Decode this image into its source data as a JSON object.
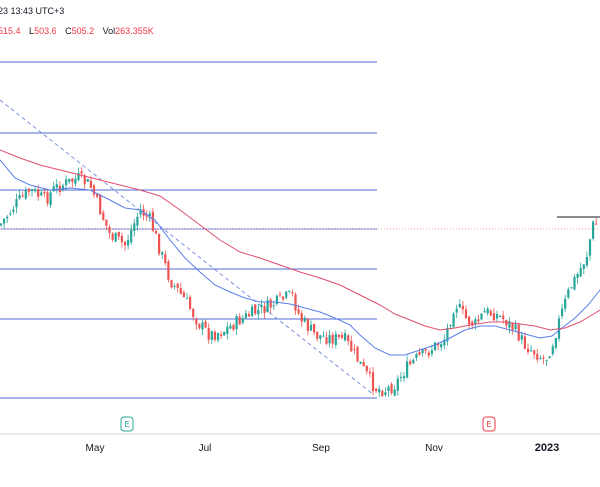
{
  "header": {
    "datetime_partial": "23 13:43 UTC+3",
    "ohlc": [
      {
        "label": "",
        "value": "515.4"
      },
      {
        "label": "L",
        "value": "503.6"
      },
      {
        "label": "C",
        "value": "505.2"
      },
      {
        "label": "Vol",
        "value": "263.355K"
      }
    ]
  },
  "colors": {
    "up": "#26a69a",
    "down": "#ef5350",
    "ma_fast": "#5b7fe8",
    "ma_slow": "#e0506e",
    "fib": "#4f6bd9",
    "trend_dashed": "#7d93e0",
    "price_line": "#f5a0a0",
    "earnings_up": "#26a69a",
    "earnings_down": "#f23645",
    "axis": "#d1d4dc"
  },
  "earnings_markers": [
    {
      "label": "E",
      "month": "May",
      "kind": "up"
    },
    {
      "label": "E",
      "month": "Nov",
      "kind": "down"
    }
  ],
  "chart_data": {
    "type": "candlestick",
    "x_axis": [
      "May",
      "Jul",
      "Sep",
      "Nov",
      "2023"
    ],
    "fib_levels_count": 7,
    "series": [
      {
        "kind": "ma_fast"
      },
      {
        "kind": "ma_slow"
      }
    ]
  }
}
